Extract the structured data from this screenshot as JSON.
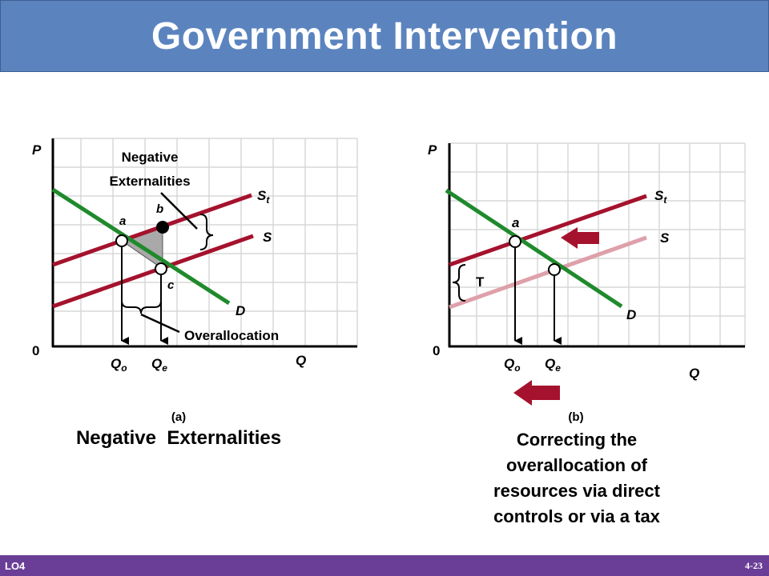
{
  "title": "Government Intervention",
  "colors": {
    "title_bar": "#5b84bf",
    "supply_tax": "#a5122d",
    "supply": "#a5122d",
    "supply_faded": "#dea0aa",
    "demand": "#1f8a2c",
    "arrow": "#a5122d",
    "footer": "#6a3e96"
  },
  "panel_a": {
    "axis_p": "P",
    "axis_q": "Q",
    "origin": "0",
    "annotation_top": "Negative\nExternalities",
    "annotation_top_line1": "Negative",
    "annotation_top_line2": "Externalities",
    "curve_st": "S",
    "curve_st_sub": "t",
    "curve_s": "S",
    "curve_d": "D",
    "point_a": "a",
    "point_b": "b",
    "point_c": "c",
    "overallocation": "Overallocation",
    "q_o": "Q",
    "q_o_sub": "o",
    "q_e": "Q",
    "q_e_sub": "e",
    "label": "(a)",
    "caption": "Negative  Externalities"
  },
  "panel_b": {
    "axis_p": "P",
    "axis_q": "Q",
    "origin": "0",
    "curve_st": "S",
    "curve_st_sub": "t",
    "curve_s": "S",
    "curve_d": "D",
    "point_a": "a",
    "tax": "T",
    "q_o": "Q",
    "q_o_sub": "o",
    "q_e": "Q",
    "q_e_sub": "e",
    "label": "(b)",
    "caption_line1": "Correcting the",
    "caption_line2": "overallocation of",
    "caption_line3": "resources via direct",
    "caption_line4": "controls or via a tax"
  },
  "footer": {
    "lo": "LO4",
    "page": "4-23"
  }
}
